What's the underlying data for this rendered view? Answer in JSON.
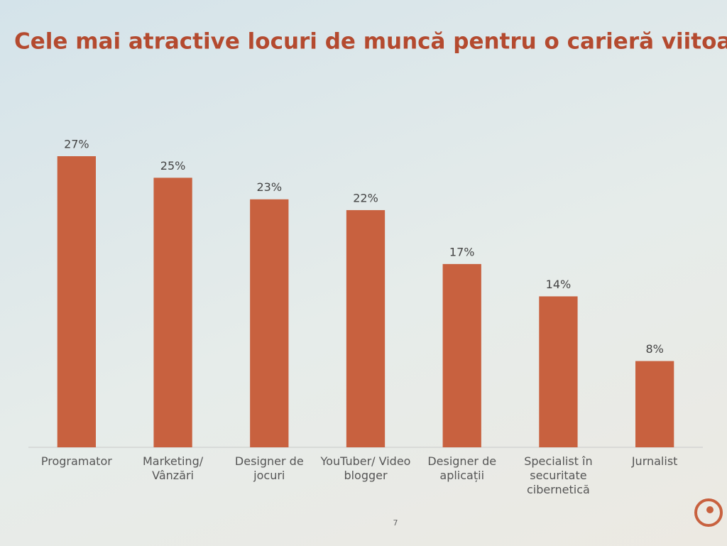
{
  "chart_data": {
    "type": "bar",
    "title": "Cele mai atractive locuri de muncă pentru o carieră viitoare",
    "categories": [
      "Programator",
      "Marketing/ Vânzări",
      "Designer de jocuri",
      "YouTuber/ Video blogger",
      "Designer de aplicații",
      "Specialist în securitate cibernetică",
      "Jurnalist"
    ],
    "values": [
      27,
      25,
      23,
      22,
      17,
      14,
      8
    ],
    "value_labels": [
      "27%",
      "25%",
      "23%",
      "22%",
      "17%",
      "14%",
      "8%"
    ],
    "color": "#c8613f"
  },
  "slide": {
    "page_number": "7"
  }
}
